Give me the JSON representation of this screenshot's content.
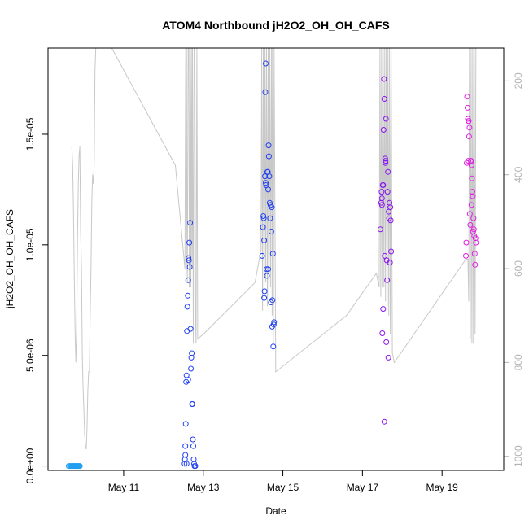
{
  "chart_data": {
    "type": "scatter",
    "title": "ATOM4 Northbound jH2O2_OH_OH_CAFS",
    "xlabel": "Date",
    "ylabel": "jH2O2_OH_OH_CAFS",
    "x_unit": "day of May",
    "xlim": [
      9.1,
      20.55
    ],
    "ylim": [
      -2e-07,
      1.89e-05
    ],
    "x_ticks": [
      {
        "value": 11,
        "label": "May 11"
      },
      {
        "value": 13,
        "label": "May 13"
      },
      {
        "value": 15,
        "label": "May 15"
      },
      {
        "value": 17,
        "label": "May 17"
      },
      {
        "value": 19,
        "label": "May 19"
      }
    ],
    "y_ticks": [
      {
        "value": 0,
        "label": "0.0e+00"
      },
      {
        "value": 5e-06,
        "label": "5.0e-06"
      },
      {
        "value": 1e-05,
        "label": "1.0e-05"
      },
      {
        "value": 1.5e-05,
        "label": "1.5e-05"
      }
    ],
    "right_axis": {
      "ylim": [
        1030,
        130
      ],
      "ticks": [
        {
          "value": 200,
          "label": "200"
        },
        {
          "value": 400,
          "label": "400"
        },
        {
          "value": 600,
          "label": "600"
        },
        {
          "value": 800,
          "label": "800"
        },
        {
          "value": 1000,
          "label": "1000"
        }
      ],
      "color": "#b3b3b3"
    },
    "grid": false,
    "legend": "none",
    "series": [
      {
        "color": "#1e9ef0",
        "points": [
          [
            9.62,
            0
          ],
          [
            9.65,
            0
          ],
          [
            9.68,
            0
          ],
          [
            9.7,
            0
          ],
          [
            9.72,
            0
          ],
          [
            9.74,
            0
          ],
          [
            9.76,
            0
          ],
          [
            9.78,
            0
          ],
          [
            9.8,
            0
          ],
          [
            9.82,
            0
          ],
          [
            9.84,
            0
          ],
          [
            9.86,
            0
          ],
          [
            9.88,
            0
          ],
          [
            9.9,
            0
          ]
        ]
      },
      {
        "color": "#2040f0",
        "points": [
          [
            12.53,
            1e-07
          ],
          [
            12.54,
            3e-07
          ],
          [
            12.55,
            5e-07
          ],
          [
            12.56,
            1.9e-06
          ],
          [
            12.57,
            3.8e-06
          ],
          [
            12.58,
            4.1e-06
          ],
          [
            12.59,
            6.1e-06
          ],
          [
            12.6,
            7.2e-06
          ],
          [
            12.61,
            7.7e-06
          ],
          [
            12.62,
            8.4e-06
          ],
          [
            12.63,
            9.4e-06
          ],
          [
            12.64,
            9.3e-06
          ],
          [
            12.65,
            1.01e-05
          ],
          [
            12.66,
            9e-06
          ],
          [
            12.67,
            1.1e-05
          ],
          [
            12.68,
            6.2e-06
          ],
          [
            12.69,
            4.4e-06
          ],
          [
            12.7,
            4.9e-06
          ],
          [
            12.71,
            5.1e-06
          ],
          [
            12.72,
            2.8e-06
          ],
          [
            12.73,
            2.8e-06
          ],
          [
            12.74,
            1.2e-06
          ],
          [
            12.75,
            9e-07
          ],
          [
            12.76,
            3e-07
          ],
          [
            12.77,
            1e-07
          ],
          [
            12.78,
            0
          ],
          [
            12.8,
            0
          ],
          [
            12.62,
            3.9e-06
          ],
          [
            12.58,
            1e-07
          ],
          [
            12.55,
            9e-07
          ],
          [
            14.48,
            9.5e-06
          ],
          [
            14.5,
            1.08e-05
          ],
          [
            14.51,
            1.13e-05
          ],
          [
            14.52,
            1.12e-05
          ],
          [
            14.53,
            7.6e-06
          ],
          [
            14.54,
            7.9e-06
          ],
          [
            14.55,
            1.31e-05
          ],
          [
            14.56,
            1.69e-05
          ],
          [
            14.57,
            1.82e-05
          ],
          [
            14.58,
            1.27e-05
          ],
          [
            14.59,
            8.9e-06
          ],
          [
            14.6,
            8.6e-06
          ],
          [
            14.61,
            1.33e-05
          ],
          [
            14.62,
            1.33e-05
          ],
          [
            14.63,
            1.25e-05
          ],
          [
            14.64,
            1.45e-05
          ],
          [
            14.65,
            1.4e-05
          ],
          [
            14.66,
            1.31e-05
          ],
          [
            14.67,
            1.19e-05
          ],
          [
            14.68,
            1.12e-05
          ],
          [
            14.69,
            1.18e-05
          ],
          [
            14.7,
            7.4e-06
          ],
          [
            14.71,
            1.06e-05
          ],
          [
            14.72,
            1.17e-05
          ],
          [
            14.73,
            6.3e-06
          ],
          [
            14.74,
            7.5e-06
          ],
          [
            14.75,
            9.6e-06
          ],
          [
            14.76,
            5.4e-06
          ],
          [
            14.77,
            6.4e-06
          ],
          [
            14.78,
            6.5e-06
          ],
          [
            14.57,
            1.28e-05
          ],
          [
            14.53,
            1.02e-05
          ],
          [
            14.63,
            8.9e-06
          ]
        ]
      },
      {
        "color": "#8a14f0",
        "points": [
          [
            17.45,
            1.07e-05
          ],
          [
            17.47,
            1.19e-05
          ],
          [
            17.48,
            1.24e-05
          ],
          [
            17.49,
            1.18e-05
          ],
          [
            17.5,
            6e-06
          ],
          [
            17.51,
            1.27e-05
          ],
          [
            17.52,
            7.1e-06
          ],
          [
            17.53,
            1.52e-05
          ],
          [
            17.54,
            1.75e-05
          ],
          [
            17.55,
            1.66e-05
          ],
          [
            17.56,
            9.5e-06
          ],
          [
            17.57,
            1.39e-05
          ],
          [
            17.58,
            1.38e-05
          ],
          [
            17.59,
            1.57e-05
          ],
          [
            17.6,
            5.6e-06
          ],
          [
            17.61,
            9.3e-06
          ],
          [
            17.62,
            8.4e-06
          ],
          [
            17.63,
            1.24e-05
          ],
          [
            17.64,
            1.33e-05
          ],
          [
            17.65,
            4.9e-06
          ],
          [
            17.66,
            1.15e-05
          ],
          [
            17.67,
            1.12e-05
          ],
          [
            17.68,
            1.19e-05
          ],
          [
            17.69,
            9.2e-06
          ],
          [
            17.7,
            1.17e-05
          ],
          [
            17.71,
            1.11e-05
          ],
          [
            17.72,
            9.7e-06
          ],
          [
            17.55,
            2e-06
          ],
          [
            17.49,
            1.21e-05
          ],
          [
            17.52,
            1.27e-05
          ],
          [
            17.58,
            1.37e-05
          ]
        ]
      },
      {
        "color": "#e020e0",
        "points": [
          [
            19.6,
            9.5e-06
          ],
          [
            19.61,
            1.01e-05
          ],
          [
            19.62,
            1.37e-05
          ],
          [
            19.63,
            1.67e-05
          ],
          [
            19.64,
            1.62e-05
          ],
          [
            19.65,
            1.57e-05
          ],
          [
            19.66,
            1.56e-05
          ],
          [
            19.67,
            1.56e-05
          ],
          [
            19.68,
            1.49e-05
          ],
          [
            19.69,
            1.53e-05
          ],
          [
            19.7,
            1.14e-05
          ],
          [
            19.71,
            1.09e-05
          ],
          [
            19.72,
            1.38e-05
          ],
          [
            19.73,
            1.38e-05
          ],
          [
            19.74,
            1.36e-05
          ],
          [
            19.75,
            1.3e-05
          ],
          [
            19.76,
            1.24e-05
          ],
          [
            19.77,
            1.22e-05
          ],
          [
            19.78,
            1.06e-05
          ],
          [
            19.79,
            1.12e-05
          ],
          [
            19.8,
            1.07e-05
          ],
          [
            19.81,
            1.04e-05
          ],
          [
            19.82,
            9.6e-06
          ],
          [
            19.83,
            9.1e-06
          ],
          [
            19.84,
            1.03e-05
          ],
          [
            19.85,
            1.01e-05
          ],
          [
            19.66,
            1.38e-05
          ],
          [
            19.74,
            1.18e-05
          ]
        ]
      }
    ],
    "pressure_trace": {
      "axis": "right",
      "color": "#c8c8c8",
      "points": [
        [
          9.7,
          340
        ],
        [
          9.72,
          380
        ],
        [
          9.74,
          480
        ],
        [
          9.76,
          620
        ],
        [
          9.78,
          740
        ],
        [
          9.8,
          800
        ],
        [
          9.82,
          730
        ],
        [
          9.84,
          540
        ],
        [
          9.86,
          420
        ],
        [
          9.88,
          360
        ],
        [
          9.9,
          340
        ],
        [
          9.92,
          520
        ],
        [
          9.94,
          600
        ],
        [
          9.96,
          780
        ],
        [
          9.98,
          850
        ],
        [
          10.0,
          900
        ],
        [
          10.02,
          950
        ],
        [
          10.04,
          980
        ],
        [
          10.06,
          985
        ],
        [
          10.08,
          940
        ],
        [
          10.1,
          860
        ],
        [
          10.12,
          820
        ],
        [
          10.14,
          820
        ],
        [
          10.16,
          700
        ],
        [
          10.18,
          600
        ],
        [
          10.2,
          460
        ],
        [
          10.22,
          400
        ],
        [
          10.24,
          420
        ],
        [
          10.26,
          380
        ],
        [
          10.28,
          180
        ],
        [
          10.3,
          130
        ],
        [
          10.35,
          130
        ],
        [
          10.7,
          130
        ],
        [
          12.3,
          380
        ],
        [
          12.54,
          600
        ],
        [
          12.56,
          130
        ],
        [
          12.58,
          130
        ],
        [
          12.59,
          580
        ],
        [
          12.6,
          630
        ],
        [
          12.62,
          130
        ],
        [
          12.64,
          130
        ],
        [
          12.65,
          640
        ],
        [
          12.66,
          610
        ],
        [
          12.67,
          130
        ],
        [
          12.69,
          640
        ],
        [
          12.7,
          130
        ],
        [
          12.72,
          600
        ],
        [
          12.73,
          130
        ],
        [
          12.75,
          760
        ],
        [
          12.77,
          130
        ],
        [
          12.79,
          130
        ],
        [
          12.8,
          680
        ],
        [
          12.82,
          760
        ],
        [
          12.84,
          130
        ],
        [
          12.86,
          750
        ],
        [
          13.0,
          740
        ],
        [
          14.3,
          630
        ],
        [
          14.45,
          560
        ],
        [
          14.47,
          130
        ],
        [
          14.49,
          690
        ],
        [
          14.51,
          130
        ],
        [
          14.53,
          640
        ],
        [
          14.55,
          130
        ],
        [
          14.57,
          630
        ],
        [
          14.59,
          130
        ],
        [
          14.61,
          680
        ],
        [
          14.63,
          130
        ],
        [
          14.65,
          690
        ],
        [
          14.67,
          130
        ],
        [
          14.69,
          640
        ],
        [
          14.71,
          130
        ],
        [
          14.73,
          700
        ],
        [
          14.74,
          130
        ],
        [
          14.76,
          760
        ],
        [
          14.78,
          130
        ],
        [
          14.82,
          820
        ],
        [
          16.6,
          700
        ],
        [
          17.35,
          610
        ],
        [
          17.42,
          640
        ],
        [
          17.44,
          130
        ],
        [
          17.46,
          660
        ],
        [
          17.48,
          130
        ],
        [
          17.5,
          640
        ],
        [
          17.52,
          130
        ],
        [
          17.54,
          640
        ],
        [
          17.56,
          130
        ],
        [
          17.58,
          670
        ],
        [
          17.6,
          130
        ],
        [
          17.62,
          680
        ],
        [
          17.64,
          130
        ],
        [
          17.66,
          700
        ],
        [
          17.68,
          130
        ],
        [
          17.7,
          740
        ],
        [
          17.72,
          130
        ],
        [
          17.75,
          780
        ],
        [
          17.8,
          800
        ],
        [
          19.6,
          580
        ],
        [
          19.65,
          580
        ],
        [
          19.67,
          670
        ],
        [
          19.69,
          130
        ],
        [
          19.71,
          750
        ],
        [
          19.73,
          130
        ],
        [
          19.75,
          760
        ],
        [
          19.77,
          130
        ],
        [
          19.79,
          760
        ],
        [
          19.81,
          130
        ],
        [
          19.83,
          740
        ],
        [
          19.85,
          130
        ]
      ]
    }
  }
}
